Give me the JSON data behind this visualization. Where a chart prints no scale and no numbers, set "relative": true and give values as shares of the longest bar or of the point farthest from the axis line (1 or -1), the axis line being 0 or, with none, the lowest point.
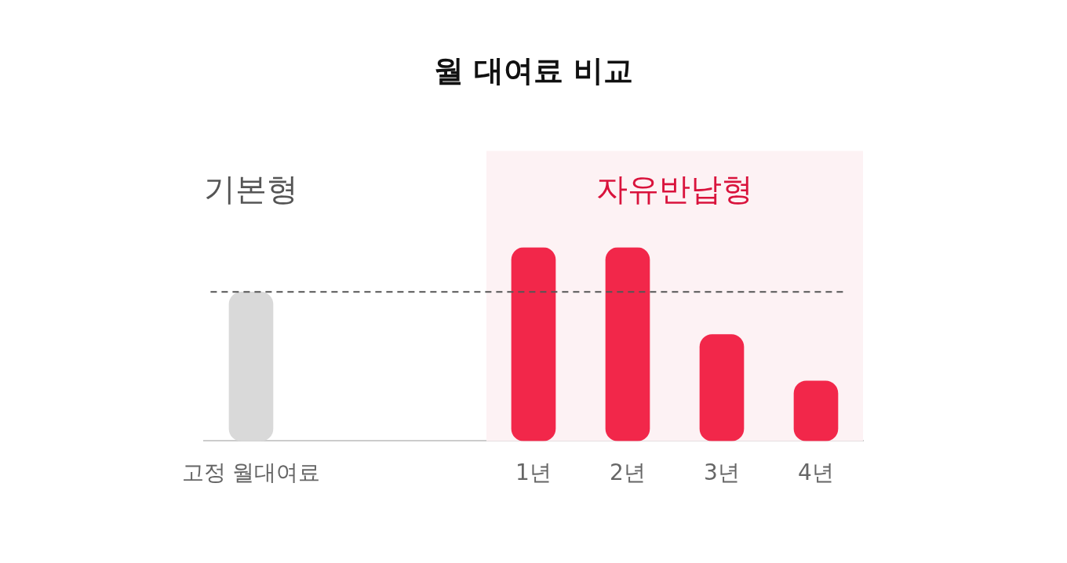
{
  "chart_data": {
    "type": "bar",
    "title": "월 대여료 비교",
    "relative": true,
    "categories": [
      "고정 월대여료",
      null,
      null,
      "1년",
      "2년",
      "3년",
      "4년"
    ],
    "values": [
      0.77,
      null,
      null,
      1,
      1,
      0.55,
      0.31
    ],
    "colors": [
      "#d9d9d9",
      "#000000",
      "#000000",
      "#f2274a",
      "#f2274a",
      "#f2274a",
      "#f2274a"
    ],
    "annotations": [
      "기본형"
    ],
    "bands": [
      {
        "axis": "x",
        "from": "1년",
        "to": "4년",
        "label": "자유반납형",
        "color": "#fdf2f4"
      }
    ],
    "ref_lines": [
      {
        "axis": "y",
        "value": 0.77,
        "color": "#555555",
        "line_style": "dashed"
      }
    ],
    "grid": false,
    "legend": false
  }
}
